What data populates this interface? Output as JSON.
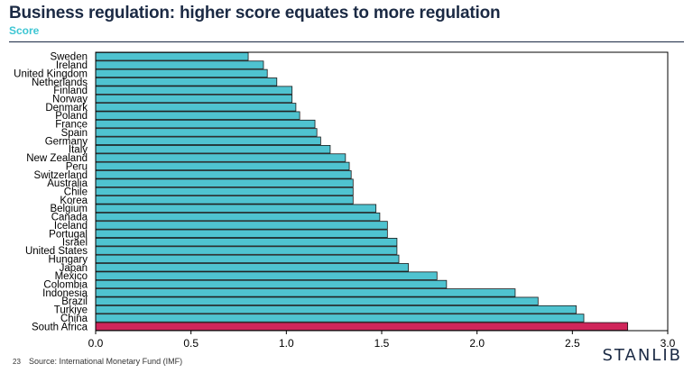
{
  "header": {
    "title": "Business regulation: higher score equates to more regulation",
    "subtitle": "Score"
  },
  "footer": {
    "page_number": "23",
    "source": "Source: International Monetary Fund (IMF)",
    "brand": "STANLIB"
  },
  "colors": {
    "bar": "#4fc3d0",
    "highlight": "#d0255a",
    "axis": "#000000"
  },
  "chart_data": {
    "type": "bar",
    "orientation": "horizontal",
    "title": "Business regulation: higher score equates to more regulation",
    "ylabel": "Score",
    "xlim": [
      0,
      3.0
    ],
    "xticks": [
      "0.0",
      "0.5",
      "1.0",
      "1.5",
      "2.0",
      "2.5",
      "3.0"
    ],
    "grid": false,
    "highlight": "South Africa",
    "categories": [
      "Sweden",
      "Ireland",
      "United Kingdom",
      "Netherlands",
      "Finland",
      "Norway",
      "Denmark",
      "Poland",
      "France",
      "Spain",
      "Germany",
      "Italy",
      "New Zealand",
      "Peru",
      "Switzerland",
      "Australia",
      "Chile",
      "Korea",
      "Belgium",
      "Canada",
      "Iceland",
      "Portugal",
      "Israel",
      "United States",
      "Hungary",
      "Japan",
      "Mexico",
      "Colombia",
      "Indonesia",
      "Brazil",
      "Turkiye",
      "China",
      "South Africa"
    ],
    "values": [
      0.8,
      0.88,
      0.9,
      0.95,
      1.03,
      1.03,
      1.05,
      1.07,
      1.15,
      1.16,
      1.18,
      1.23,
      1.31,
      1.33,
      1.34,
      1.35,
      1.35,
      1.35,
      1.47,
      1.49,
      1.53,
      1.53,
      1.58,
      1.58,
      1.59,
      1.64,
      1.79,
      1.84,
      2.2,
      2.32,
      2.52,
      2.56,
      2.79
    ]
  }
}
